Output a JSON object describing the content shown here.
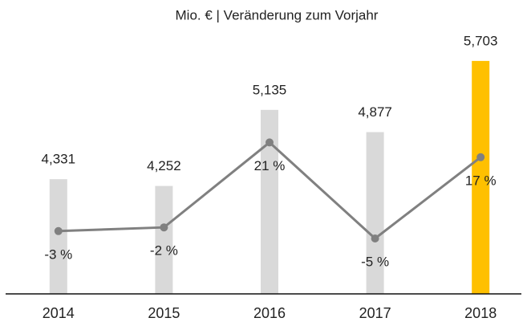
{
  "chart_data": {
    "type": "bar",
    "title": "Mio. € | Veränderung zum Vorjahr",
    "categories": [
      "2014",
      "2015",
      "2016",
      "2017",
      "2018"
    ],
    "series": [
      {
        "values": [
          4331,
          4252,
          5135,
          4877,
          5703
        ],
        "value_labels": [
          "4,331",
          "4,252",
          "5,135",
          "4,877",
          "5,703"
        ],
        "colors": [
          "#d9d9d9",
          "#d9d9d9",
          "#d9d9d9",
          "#d9d9d9",
          "#ffc000"
        ]
      },
      {
        "type": "line",
        "axis": "y2",
        "color": "#808080",
        "values": [
          -3,
          -2,
          21,
          -5,
          17
        ],
        "value_labels": [
          "-3 %",
          "-2 %",
          "21 %",
          "-5 %",
          "17 %"
        ]
      }
    ],
    "ylim": [
      3000,
      6000
    ],
    "y2lim": [
      -20,
      50
    ]
  }
}
